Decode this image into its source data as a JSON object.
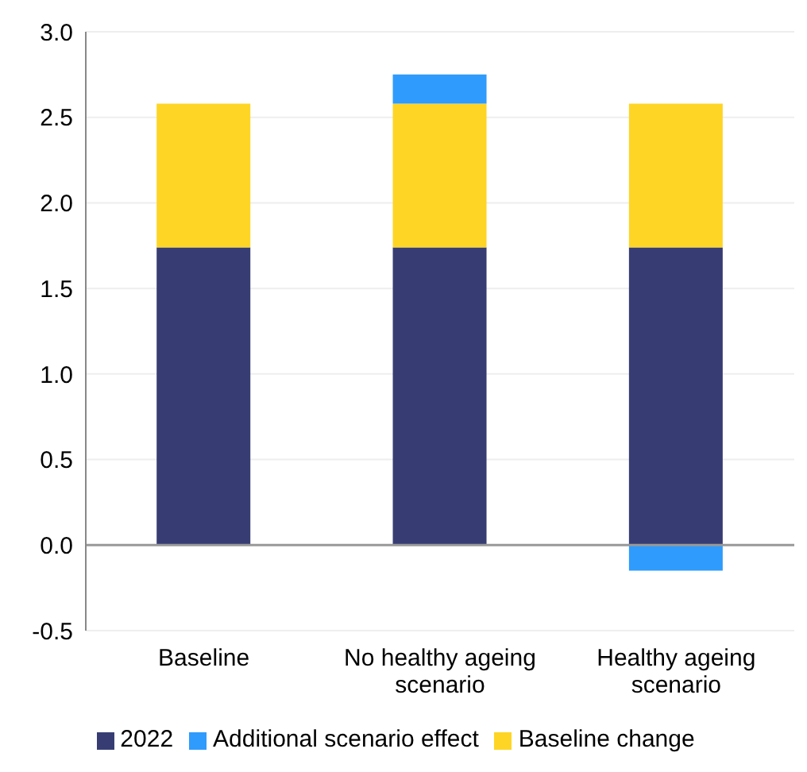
{
  "chart_data": {
    "type": "bar",
    "stacked": true,
    "categories": [
      "Baseline",
      "No healthy ageing scenario",
      "Healthy ageing scenario"
    ],
    "series": [
      {
        "name": "2022",
        "color": "#373d73",
        "values": [
          1.74,
          1.74,
          1.74
        ]
      },
      {
        "name": "Baseline change",
        "color": "#fed524",
        "values": [
          0.84,
          0.84,
          0.84
        ]
      },
      {
        "name": "Additional scenario effect",
        "color": "#2f9bfc",
        "values": [
          null,
          0.17,
          -0.15
        ]
      }
    ],
    "ylim": [
      -0.5,
      3.0
    ],
    "yticks": [
      {
        "value": -0.5,
        "label": "-0.5"
      },
      {
        "value": 0,
        "label": "0.0"
      },
      {
        "value": 0.5,
        "label": "0.5"
      },
      {
        "value": 1,
        "label": "1.0"
      },
      {
        "value": 1.5,
        "label": "1.5"
      },
      {
        "value": 2,
        "label": "2.0"
      },
      {
        "value": 2.5,
        "label": "2.5"
      },
      {
        "value": 3,
        "label": "3.0"
      }
    ],
    "grid": "y",
    "legend": "bottom"
  }
}
